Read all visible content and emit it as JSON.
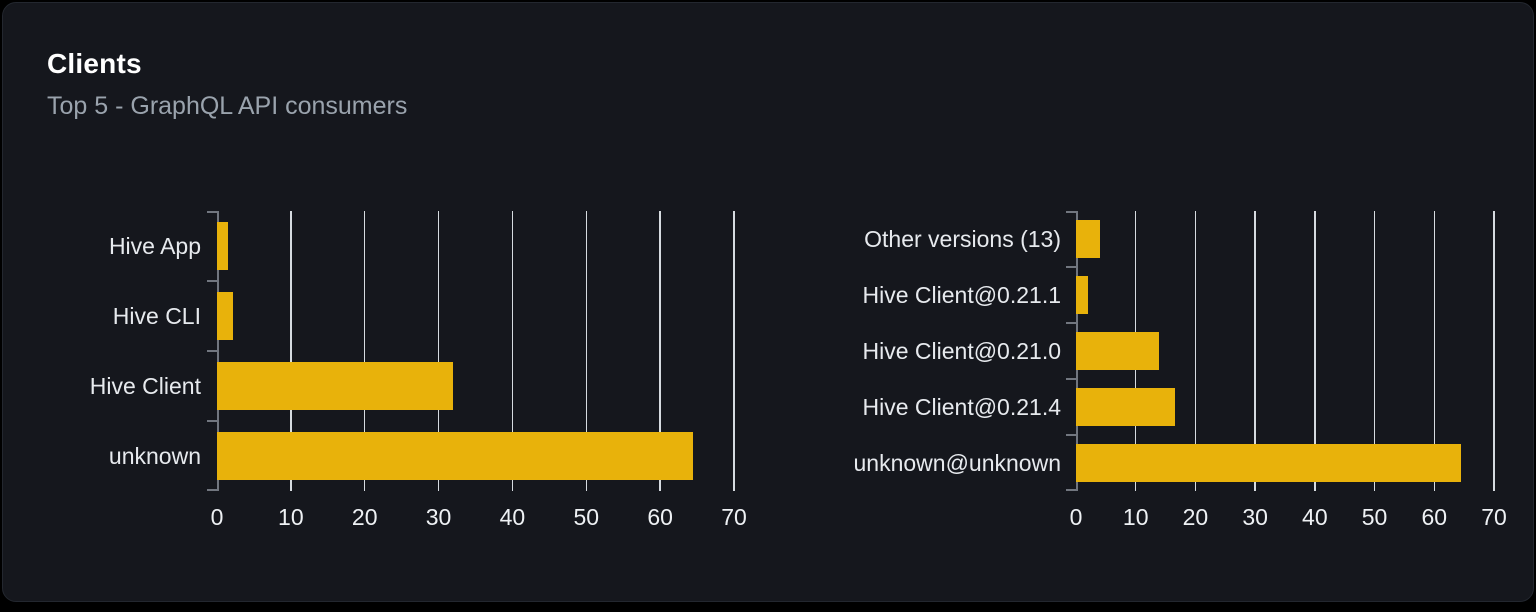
{
  "card": {
    "title": "Clients",
    "subtitle": "Top 5 - GraphQL API consumers"
  },
  "colors": {
    "bar": "#e8b20b",
    "card_background": "#15171d",
    "page_background": "#000000",
    "gridline": "#d6dbe0",
    "axis": "#71767f",
    "title_text": "#ffffff",
    "subtitle_text": "#9aa3ad",
    "category_label_text": "#e7eaee",
    "tick_label_text": "#eef1f4"
  },
  "chart_data": [
    {
      "type": "bar",
      "orientation": "horizontal",
      "name": "clients",
      "categories": [
        "Hive App",
        "Hive CLI",
        "Hive Client",
        "unknown"
      ],
      "values": [
        1.5,
        2.2,
        32,
        64.5
      ],
      "xlim": [
        0,
        70
      ],
      "xticks": [
        0,
        10,
        20,
        30,
        40,
        50,
        60,
        70
      ],
      "grid": true,
      "legend": false,
      "bar_color": "#e8b20b"
    },
    {
      "type": "bar",
      "orientation": "horizontal",
      "name": "client-versions",
      "categories": [
        "Other versions (13)",
        "Hive Client@0.21.1",
        "Hive Client@0.21.0",
        "Hive Client@0.21.4",
        "unknown@unknown"
      ],
      "values": [
        4.1,
        2.0,
        13.9,
        16.5,
        64.4
      ],
      "xlim": [
        0,
        70
      ],
      "xticks": [
        0,
        10,
        20,
        30,
        40,
        50,
        60,
        70
      ],
      "grid": true,
      "legend": false,
      "bar_color": "#e8b20b"
    }
  ]
}
